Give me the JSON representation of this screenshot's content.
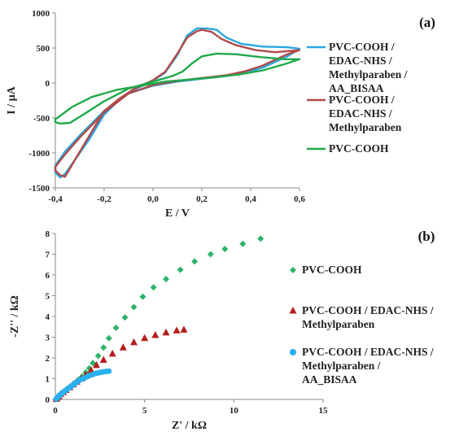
{
  "chart_data": [
    {
      "panel_label": "(a)",
      "type": "line",
      "xlabel": "E / V",
      "ylabel": "I / µA",
      "xlim": [
        -0.4,
        0.6
      ],
      "ylim": [
        -1500,
        1000
      ],
      "x_ticks": [
        "-0,4",
        "-0,2",
        "0,0",
        "0,2",
        "0,4",
        "0,6"
      ],
      "y_ticks": [
        "-1500",
        "-1000",
        "-500",
        "0",
        "500",
        "1000"
      ],
      "grid": false,
      "legend_position": "right",
      "series": [
        {
          "name": "PVC-COOH / EDAC-NHS / Methylparaben / AA_BISAA",
          "color": "#29A8E0",
          "values": [
            [
              -0.4,
              -1280
            ],
            [
              -0.38,
              -1350
            ],
            [
              -0.36,
              -1300
            ],
            [
              -0.32,
              -1100
            ],
            [
              -0.26,
              -800
            ],
            [
              -0.2,
              -450
            ],
            [
              -0.14,
              -250
            ],
            [
              -0.08,
              -100
            ],
            [
              0.0,
              30
            ],
            [
              0.05,
              150
            ],
            [
              0.1,
              400
            ],
            [
              0.14,
              680
            ],
            [
              0.18,
              780
            ],
            [
              0.22,
              780
            ],
            [
              0.26,
              760
            ],
            [
              0.3,
              650
            ],
            [
              0.36,
              560
            ],
            [
              0.45,
              520
            ],
            [
              0.55,
              510
            ],
            [
              0.6,
              490
            ],
            [
              0.55,
              380
            ],
            [
              0.45,
              220
            ],
            [
              0.38,
              150
            ],
            [
              0.3,
              100
            ],
            [
              0.2,
              60
            ],
            [
              0.1,
              20
            ],
            [
              0.0,
              -40
            ],
            [
              -0.1,
              -150
            ],
            [
              -0.2,
              -400
            ],
            [
              -0.3,
              -750
            ],
            [
              -0.36,
              -980
            ],
            [
              -0.4,
              -1180
            ]
          ]
        },
        {
          "name": "PVC-COOH / EDAC-NHS / Methylparaben",
          "color": "#B04A4A",
          "values": [
            [
              -0.4,
              -1250
            ],
            [
              -0.38,
              -1320
            ],
            [
              -0.36,
              -1340
            ],
            [
              -0.32,
              -1100
            ],
            [
              -0.26,
              -750
            ],
            [
              -0.2,
              -400
            ],
            [
              -0.14,
              -230
            ],
            [
              -0.08,
              -90
            ],
            [
              0.0,
              40
            ],
            [
              0.05,
              160
            ],
            [
              0.1,
              420
            ],
            [
              0.14,
              650
            ],
            [
              0.18,
              740
            ],
            [
              0.2,
              760
            ],
            [
              0.24,
              730
            ],
            [
              0.28,
              630
            ],
            [
              0.34,
              540
            ],
            [
              0.42,
              470
            ],
            [
              0.5,
              440
            ],
            [
              0.57,
              460
            ],
            [
              0.6,
              470
            ],
            [
              0.55,
              410
            ],
            [
              0.45,
              250
            ],
            [
              0.38,
              170
            ],
            [
              0.3,
              110
            ],
            [
              0.2,
              70
            ],
            [
              0.1,
              30
            ],
            [
              0.0,
              -30
            ],
            [
              -0.1,
              -150
            ],
            [
              -0.2,
              -420
            ],
            [
              -0.3,
              -780
            ],
            [
              -0.36,
              -1020
            ],
            [
              -0.4,
              -1200
            ]
          ]
        },
        {
          "name": "PVC-COOH",
          "color": "#1FA84A",
          "values": [
            [
              -0.4,
              -560
            ],
            [
              -0.38,
              -580
            ],
            [
              -0.34,
              -570
            ],
            [
              -0.28,
              -440
            ],
            [
              -0.2,
              -260
            ],
            [
              -0.1,
              -80
            ],
            [
              0.0,
              20
            ],
            [
              0.08,
              100
            ],
            [
              0.12,
              160
            ],
            [
              0.16,
              280
            ],
            [
              0.2,
              380
            ],
            [
              0.26,
              420
            ],
            [
              0.34,
              410
            ],
            [
              0.44,
              370
            ],
            [
              0.54,
              340
            ],
            [
              0.6,
              340
            ],
            [
              0.55,
              280
            ],
            [
              0.45,
              180
            ],
            [
              0.35,
              120
            ],
            [
              0.25,
              80
            ],
            [
              0.15,
              50
            ],
            [
              0.05,
              20
            ],
            [
              -0.05,
              -40
            ],
            [
              -0.15,
              -100
            ],
            [
              -0.25,
              -200
            ],
            [
              -0.33,
              -340
            ],
            [
              -0.4,
              -520
            ]
          ]
        }
      ]
    },
    {
      "panel_label": "(b)",
      "type": "scatter",
      "xlabel": "Z' / kΩ",
      "ylabel": "-Z'' / kΩ",
      "xlim": [
        0,
        15
      ],
      "ylim": [
        0,
        8
      ],
      "x_ticks": [
        "0",
        "5",
        "10",
        "15"
      ],
      "y_ticks": [
        "0",
        "1",
        "2",
        "3",
        "4",
        "5",
        "6",
        "7",
        "8"
      ],
      "grid": false,
      "legend_position": "right",
      "series": [
        {
          "name": "PVC-COOH",
          "color": "#2DB36A",
          "marker": "diamond",
          "values": [
            [
              0.05,
              0.02
            ],
            [
              0.1,
              0.08
            ],
            [
              0.15,
              0.15
            ],
            [
              0.25,
              0.22
            ],
            [
              0.35,
              0.3
            ],
            [
              0.5,
              0.4
            ],
            [
              0.7,
              0.52
            ],
            [
              0.9,
              0.65
            ],
            [
              1.1,
              0.8
            ],
            [
              1.3,
              0.95
            ],
            [
              1.5,
              1.1
            ],
            [
              1.7,
              1.3
            ],
            [
              1.9,
              1.5
            ],
            [
              2.1,
              1.75
            ],
            [
              2.4,
              2.1
            ],
            [
              2.7,
              2.5
            ],
            [
              3.0,
              2.95
            ],
            [
              3.4,
              3.45
            ],
            [
              3.9,
              3.95
            ],
            [
              4.4,
              4.45
            ],
            [
              4.9,
              4.95
            ],
            [
              5.5,
              5.4
            ],
            [
              6.2,
              5.8
            ],
            [
              7.0,
              6.25
            ],
            [
              7.8,
              6.65
            ],
            [
              8.7,
              7.0
            ],
            [
              9.5,
              7.25
            ],
            [
              10.5,
              7.5
            ],
            [
              11.5,
              7.75
            ]
          ]
        },
        {
          "name": "PVC-COOH / EDAC-NHS / Methylparaben",
          "color": "#B41E1E",
          "marker": "triangle",
          "values": [
            [
              0.05,
              0.02
            ],
            [
              0.1,
              0.08
            ],
            [
              0.2,
              0.15
            ],
            [
              0.3,
              0.25
            ],
            [
              0.45,
              0.35
            ],
            [
              0.6,
              0.45
            ],
            [
              0.8,
              0.58
            ],
            [
              1.0,
              0.72
            ],
            [
              1.2,
              0.85
            ],
            [
              1.45,
              1.0
            ],
            [
              1.7,
              1.18
            ],
            [
              2.0,
              1.4
            ],
            [
              2.3,
              1.65
            ],
            [
              2.7,
              1.9
            ],
            [
              3.2,
              2.2
            ],
            [
              3.8,
              2.5
            ],
            [
              4.4,
              2.75
            ],
            [
              5.0,
              2.95
            ],
            [
              5.6,
              3.1
            ],
            [
              6.2,
              3.22
            ],
            [
              6.8,
              3.32
            ],
            [
              7.2,
              3.36
            ]
          ]
        },
        {
          "name": "PVC-COOH / EDAC-NHS / Methylparaben / AA_BISAA",
          "color": "#29B0EE",
          "marker": "circle",
          "values": [
            [
              0.05,
              0.02
            ],
            [
              0.1,
              0.06
            ],
            [
              0.15,
              0.12
            ],
            [
              0.22,
              0.18
            ],
            [
              0.3,
              0.24
            ],
            [
              0.38,
              0.3
            ],
            [
              0.47,
              0.36
            ],
            [
              0.56,
              0.42
            ],
            [
              0.65,
              0.48
            ],
            [
              0.75,
              0.55
            ],
            [
              0.85,
              0.6
            ],
            [
              0.95,
              0.67
            ],
            [
              1.05,
              0.74
            ],
            [
              1.15,
              0.8
            ],
            [
              1.25,
              0.86
            ],
            [
              1.35,
              0.92
            ],
            [
              1.5,
              0.98
            ],
            [
              1.65,
              1.04
            ],
            [
              1.8,
              1.1
            ],
            [
              1.95,
              1.16
            ],
            [
              2.1,
              1.2
            ],
            [
              2.25,
              1.25
            ],
            [
              2.4,
              1.28
            ],
            [
              2.55,
              1.31
            ],
            [
              2.7,
              1.33
            ],
            [
              2.85,
              1.35
            ],
            [
              3.0,
              1.36
            ]
          ]
        }
      ]
    }
  ]
}
